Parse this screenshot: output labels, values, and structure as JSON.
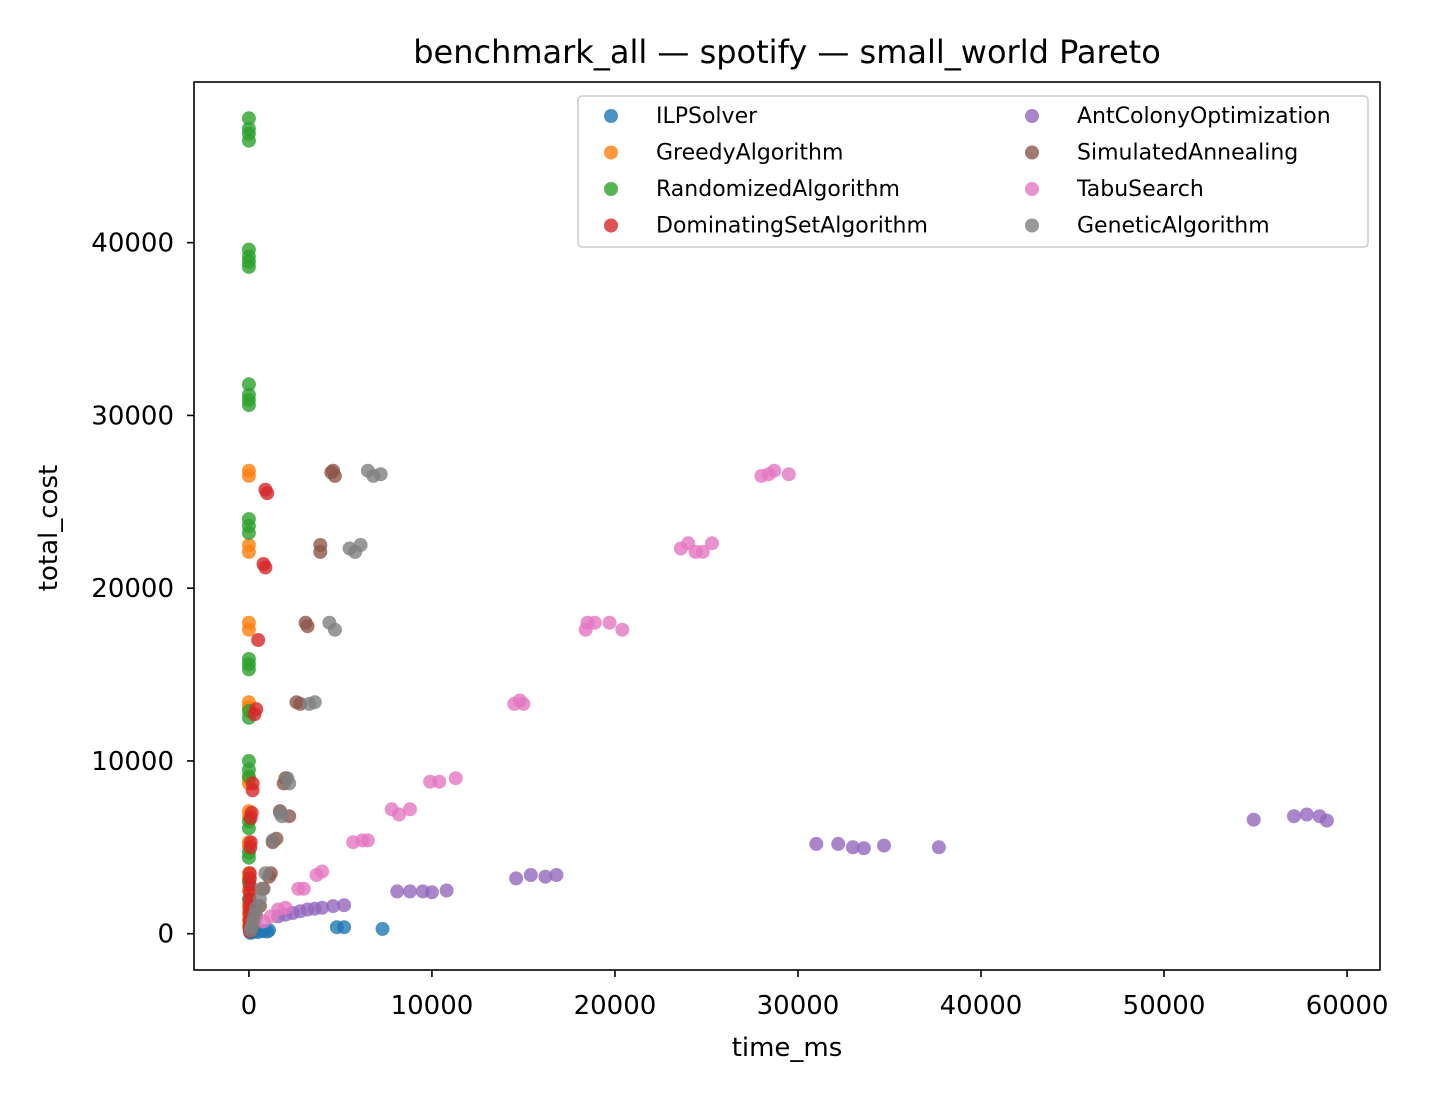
{
  "chart_data": {
    "type": "scatter",
    "title": "benchmark_all — spotify — small_world Pareto",
    "xlabel": "time_ms",
    "ylabel": "total_cost",
    "xlim": [
      -3000,
      61800
    ],
    "ylim": [
      -2100,
      49300
    ],
    "xticks": [
      0,
      10000,
      20000,
      30000,
      40000,
      50000,
      60000
    ],
    "yticks": [
      0,
      10000,
      20000,
      30000,
      40000
    ],
    "grid": false,
    "legend": {
      "placement": "top-right",
      "columns": 2
    },
    "series": [
      {
        "name": "ILPSolver",
        "color": "#1f77b4",
        "points": [
          [
            80,
            50
          ],
          [
            150,
            80
          ],
          [
            300,
            120
          ],
          [
            500,
            100
          ],
          [
            800,
            150
          ],
          [
            1000,
            120
          ],
          [
            1100,
            200
          ],
          [
            4800,
            380
          ],
          [
            5200,
            380
          ],
          [
            7300,
            280
          ]
        ]
      },
      {
        "name": "GreedyAlgorithm",
        "color": "#ff7f0e",
        "points": [
          [
            0,
            26800
          ],
          [
            0,
            26500
          ],
          [
            0,
            22500
          ],
          [
            0,
            22100
          ],
          [
            0,
            18000
          ],
          [
            0,
            17600
          ],
          [
            0,
            13400
          ],
          [
            0,
            13100
          ],
          [
            0,
            9000
          ],
          [
            0,
            8700
          ],
          [
            0,
            7100
          ],
          [
            0,
            6800
          ],
          [
            0,
            5300
          ],
          [
            0,
            5100
          ],
          [
            0,
            3500
          ],
          [
            0,
            3200
          ],
          [
            0,
            2500
          ],
          [
            0,
            1600
          ],
          [
            0,
            1200
          ],
          [
            0,
            800
          ],
          [
            0,
            400
          ]
        ]
      },
      {
        "name": "RandomizedAlgorithm",
        "color": "#2ca02c",
        "points": [
          [
            0,
            47200
          ],
          [
            0,
            46600
          ],
          [
            0,
            46300
          ],
          [
            0,
            45900
          ],
          [
            0,
            39600
          ],
          [
            0,
            39200
          ],
          [
            0,
            38900
          ],
          [
            0,
            38600
          ],
          [
            0,
            31800
          ],
          [
            0,
            31200
          ],
          [
            0,
            30900
          ],
          [
            0,
            30600
          ],
          [
            0,
            24000
          ],
          [
            0,
            23600
          ],
          [
            0,
            23200
          ],
          [
            0,
            15900
          ],
          [
            0,
            15600
          ],
          [
            0,
            15300
          ],
          [
            0,
            12900
          ],
          [
            0,
            12500
          ],
          [
            0,
            10000
          ],
          [
            0,
            9500
          ],
          [
            0,
            9100
          ],
          [
            0,
            6500
          ],
          [
            0,
            6100
          ],
          [
            0,
            4700
          ],
          [
            0,
            4400
          ],
          [
            0,
            3000
          ],
          [
            0,
            2000
          ]
        ]
      },
      {
        "name": "DominatingSetAlgorithm",
        "color": "#d62728",
        "points": [
          [
            900,
            25700
          ],
          [
            1000,
            25500
          ],
          [
            800,
            21400
          ],
          [
            900,
            21200
          ],
          [
            500,
            17000
          ],
          [
            400,
            13000
          ],
          [
            300,
            12700
          ],
          [
            200,
            8700
          ],
          [
            200,
            8300
          ],
          [
            150,
            7000
          ],
          [
            100,
            6700
          ],
          [
            100,
            5300
          ],
          [
            80,
            5000
          ],
          [
            50,
            3500
          ],
          [
            50,
            3200
          ],
          [
            50,
            2800
          ],
          [
            50,
            2400
          ],
          [
            50,
            2000
          ],
          [
            50,
            1700
          ],
          [
            50,
            1400
          ],
          [
            50,
            1100
          ],
          [
            50,
            800
          ],
          [
            50,
            500
          ],
          [
            50,
            300
          ],
          [
            50,
            150
          ]
        ]
      },
      {
        "name": "AntColonyOptimization",
        "color": "#9467bd",
        "points": [
          [
            1600,
            1000
          ],
          [
            2000,
            1100
          ],
          [
            2400,
            1200
          ],
          [
            2800,
            1300
          ],
          [
            3200,
            1400
          ],
          [
            3600,
            1450
          ],
          [
            4000,
            1500
          ],
          [
            4600,
            1600
          ],
          [
            5200,
            1650
          ],
          [
            8100,
            2450
          ],
          [
            8800,
            2450
          ],
          [
            9500,
            2450
          ],
          [
            10000,
            2400
          ],
          [
            10800,
            2500
          ],
          [
            14600,
            3200
          ],
          [
            15400,
            3400
          ],
          [
            16200,
            3300
          ],
          [
            16800,
            3400
          ],
          [
            31000,
            5200
          ],
          [
            32200,
            5200
          ],
          [
            33000,
            5000
          ],
          [
            33600,
            4950
          ],
          [
            34700,
            5100
          ],
          [
            37700,
            5000
          ],
          [
            54900,
            6600
          ],
          [
            57100,
            6800
          ],
          [
            57800,
            6900
          ],
          [
            58500,
            6800
          ],
          [
            58900,
            6550
          ]
        ]
      },
      {
        "name": "SimulatedAnnealing",
        "color": "#8c564b",
        "points": [
          [
            4600,
            26800
          ],
          [
            4700,
            26500
          ],
          [
            4500,
            26700
          ],
          [
            3900,
            22500
          ],
          [
            3900,
            22100
          ],
          [
            3100,
            18000
          ],
          [
            3200,
            17800
          ],
          [
            2600,
            13400
          ],
          [
            2800,
            13300
          ],
          [
            2000,
            9000
          ],
          [
            1900,
            8700
          ],
          [
            1700,
            7100
          ],
          [
            2200,
            6800
          ],
          [
            1500,
            5500
          ],
          [
            1300,
            5300
          ],
          [
            1200,
            3500
          ],
          [
            1100,
            3300
          ],
          [
            800,
            2600
          ],
          [
            600,
            1600
          ],
          [
            400,
            1000
          ],
          [
            300,
            600
          ]
        ]
      },
      {
        "name": "TabuSearch",
        "color": "#e377c2",
        "points": [
          [
            28000,
            26500
          ],
          [
            28400,
            26600
          ],
          [
            28700,
            26800
          ],
          [
            29500,
            26600
          ],
          [
            23600,
            22300
          ],
          [
            24000,
            22600
          ],
          [
            24400,
            22100
          ],
          [
            24800,
            22100
          ],
          [
            25300,
            22600
          ],
          [
            18400,
            17600
          ],
          [
            18500,
            18000
          ],
          [
            18900,
            18000
          ],
          [
            19700,
            18000
          ],
          [
            20400,
            17600
          ],
          [
            14500,
            13300
          ],
          [
            14800,
            13500
          ],
          [
            15000,
            13300
          ],
          [
            9900,
            8800
          ],
          [
            10400,
            8800
          ],
          [
            11300,
            9000
          ],
          [
            7800,
            7200
          ],
          [
            8200,
            6900
          ],
          [
            8800,
            7200
          ],
          [
            5700,
            5300
          ],
          [
            6200,
            5400
          ],
          [
            6500,
            5400
          ],
          [
            3700,
            3400
          ],
          [
            4000,
            3600
          ],
          [
            2700,
            2600
          ],
          [
            3000,
            2600
          ],
          [
            2000,
            1500
          ],
          [
            1600,
            1400
          ],
          [
            1200,
            1000
          ],
          [
            800,
            700
          ]
        ]
      },
      {
        "name": "GeneticAlgorithm",
        "color": "#7f7f7f",
        "points": [
          [
            6500,
            26800
          ],
          [
            6800,
            26500
          ],
          [
            7200,
            26600
          ],
          [
            5500,
            22300
          ],
          [
            5800,
            22100
          ],
          [
            6100,
            22500
          ],
          [
            4400,
            18000
          ],
          [
            4700,
            17600
          ],
          [
            3300,
            13300
          ],
          [
            3600,
            13400
          ],
          [
            2100,
            9000
          ],
          [
            2200,
            8700
          ],
          [
            1700,
            7000
          ],
          [
            1800,
            6800
          ],
          [
            1300,
            5400
          ],
          [
            900,
            3500
          ],
          [
            700,
            2600
          ],
          [
            600,
            2000
          ],
          [
            400,
            1500
          ],
          [
            300,
            1100
          ],
          [
            200,
            700
          ],
          [
            150,
            400
          ],
          [
            100,
            200
          ]
        ]
      }
    ]
  }
}
